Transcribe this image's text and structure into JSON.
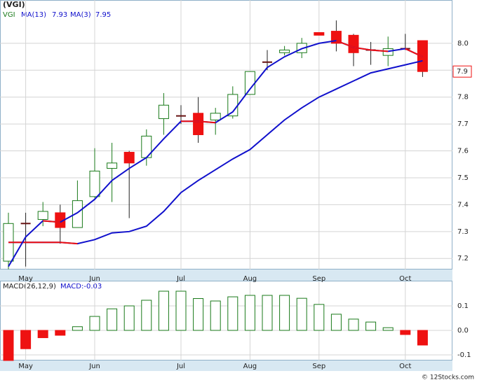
{
  "chart_data": [
    {
      "type": "candlestick",
      "title": "(VGI)",
      "symbol": "VGI",
      "price_tag": "7.9",
      "watermark": "© 12Stocks.com",
      "categories": [
        null,
        "May",
        null,
        null,
        null,
        "Jun",
        null,
        null,
        null,
        null,
        "Jul",
        null,
        null,
        null,
        "Aug",
        null,
        null,
        null,
        "Sep",
        null,
        null,
        null,
        null,
        "Oct",
        null
      ],
      "open": [
        7.19,
        7.33,
        7.345,
        7.37,
        7.315,
        7.43,
        7.535,
        7.595,
        7.575,
        7.72,
        7.73,
        7.74,
        7.715,
        7.73,
        7.81,
        7.93,
        7.965,
        7.965,
        8.04,
        8.045,
        8.03,
        7.975,
        7.955,
        7.98,
        8.01
      ],
      "high": [
        7.37,
        7.37,
        7.41,
        7.4,
        7.49,
        7.61,
        7.63,
        7.6,
        7.68,
        7.815,
        7.77,
        7.8,
        7.76,
        7.84,
        7.895,
        7.975,
        7.99,
        8.02,
        8.04,
        8.085,
        8.035,
        8.005,
        8.025,
        8.035,
        8.01
      ],
      "low": [
        7.16,
        7.17,
        7.32,
        7.255,
        7.315,
        7.425,
        7.41,
        7.35,
        7.545,
        7.66,
        7.7,
        7.63,
        7.66,
        7.72,
        7.81,
        7.9,
        7.955,
        7.945,
        8.03,
        7.97,
        7.915,
        7.92,
        7.915,
        7.975,
        7.875
      ],
      "close": [
        7.33,
        7.33,
        7.375,
        7.315,
        7.415,
        7.525,
        7.555,
        7.555,
        7.655,
        7.77,
        7.73,
        7.66,
        7.74,
        7.81,
        7.895,
        7.93,
        7.975,
        8.0,
        8.03,
        8.0,
        7.965,
        7.975,
        7.98,
        7.98,
        7.895
      ],
      "up_color": "#1a7a1a",
      "down_color": "#ee1111",
      "falling_color": "#ee1111",
      "series": [
        {
          "name": "MA(13)",
          "legend_value": "7.93",
          "color": "#1010cc",
          "values": [
            7.26,
            7.26,
            7.26,
            7.26,
            7.255,
            7.27,
            7.295,
            7.3,
            7.32,
            7.375,
            7.445,
            7.49,
            7.53,
            7.57,
            7.605,
            7.66,
            7.715,
            7.76,
            7.8,
            7.83,
            7.86,
            7.89,
            7.905,
            7.92,
            7.935
          ]
        },
        {
          "name": "MA(3)",
          "legend_value": "7.95",
          "color": "#1010cc",
          "values": [
            7.17,
            7.28,
            7.34,
            7.335,
            7.37,
            7.42,
            7.49,
            7.535,
            7.575,
            7.645,
            7.71,
            7.71,
            7.705,
            7.745,
            7.83,
            7.91,
            7.95,
            7.98,
            8.0,
            8.01,
            7.985,
            7.975,
            7.97,
            7.98,
            7.95
          ]
        }
      ],
      "ylim": [
        7.159,
        8.161
      ],
      "yticks": [
        7.2,
        7.3,
        7.4,
        7.5,
        7.6,
        7.7,
        7.8,
        7.9,
        {
          "value": 8,
          "label": "8.0"
        }
      ],
      "grid": true
    },
    {
      "type": "bar",
      "indicator": "MACD(26,12,9)",
      "value_label": "MACD:-0.03",
      "categories": [
        null,
        "May",
        null,
        null,
        null,
        "Jun",
        null,
        null,
        null,
        null,
        "Jul",
        null,
        null,
        null,
        "Aug",
        null,
        null,
        null,
        "Sep",
        null,
        null,
        null,
        null,
        "Oct",
        null
      ],
      "values": [
        -0.123,
        -0.075,
        -0.03,
        -0.02,
        0.015,
        0.057,
        0.088,
        0.1,
        0.123,
        0.16,
        0.16,
        0.13,
        0.12,
        0.137,
        0.143,
        0.143,
        0.143,
        0.131,
        0.106,
        0.066,
        0.046,
        0.034,
        0.011,
        -0.017,
        -0.06
      ],
      "up_color": "#1a7a1a",
      "down_color": "#ee1111",
      "ylim": [
        -0.123,
        0.2
      ],
      "yticks": [
        0.1,
        {
          "value": 0,
          "label": "0.0"
        },
        -0.1
      ],
      "grid": true
    }
  ]
}
